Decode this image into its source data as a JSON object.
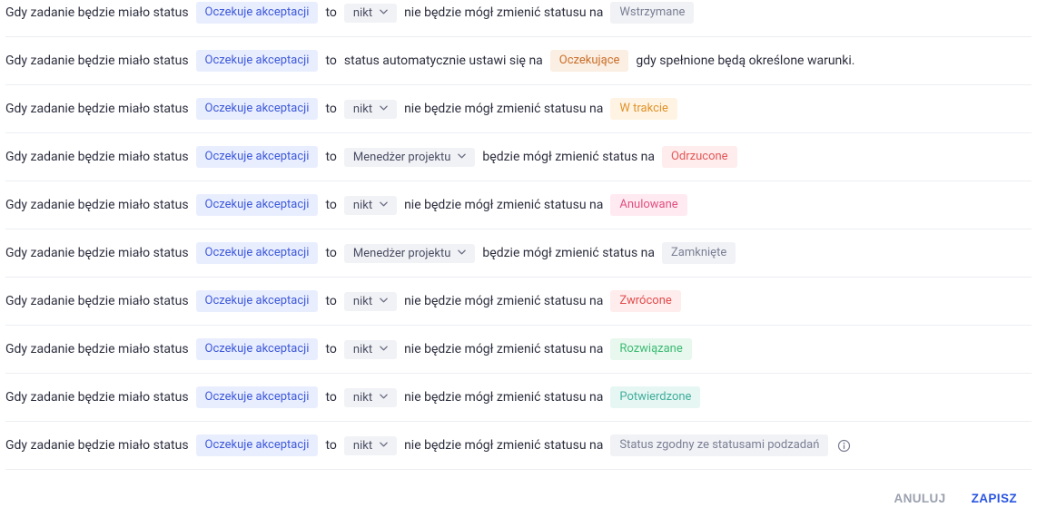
{
  "text": {
    "prefix": "Gdy zadanie będzie miało status",
    "to": "to",
    "auto_mid": "status automatycznie ustawi się na",
    "auto_suffix": "gdy spełnione będą określone warunki.",
    "cannot_nobody": "nie będzie mógł zmienić statusu na",
    "can_pm": "będzie mógł zmienić status na"
  },
  "status_from": {
    "label": "Oczekuje akceptacji",
    "chip_class": "chip-blue"
  },
  "actors": {
    "nobody": "nikt",
    "pm": "Menedżer projektu"
  },
  "rows": [
    {
      "kind": "actor",
      "actor": "nobody",
      "target_label": "Wstrzymane",
      "target_class": "chip-gray"
    },
    {
      "kind": "auto",
      "target_label": "Oczekujące",
      "target_class": "chip-orange-soft"
    },
    {
      "kind": "actor",
      "actor": "nobody",
      "target_label": "W trakcie",
      "target_class": "chip-amber"
    },
    {
      "kind": "actor",
      "actor": "pm",
      "target_label": "Odrzucone",
      "target_class": "chip-red-soft"
    },
    {
      "kind": "actor",
      "actor": "nobody",
      "target_label": "Anulowane",
      "target_class": "chip-pink"
    },
    {
      "kind": "actor",
      "actor": "pm",
      "target_label": "Zamknięte",
      "target_class": "chip-gray"
    },
    {
      "kind": "actor",
      "actor": "nobody",
      "target_label": "Zwrócone",
      "target_class": "chip-red"
    },
    {
      "kind": "actor",
      "actor": "nobody",
      "target_label": "Rozwiązane",
      "target_class": "chip-green"
    },
    {
      "kind": "actor",
      "actor": "nobody",
      "target_label": "Potwierdzone",
      "target_class": "chip-teal"
    },
    {
      "kind": "actor",
      "actor": "nobody",
      "target_label": "Status zgodny ze statusami podzadań",
      "target_class": "chip-gray",
      "info": true
    }
  ],
  "footer": {
    "cancel": "ANULUJ",
    "save": "ZAPISZ"
  }
}
